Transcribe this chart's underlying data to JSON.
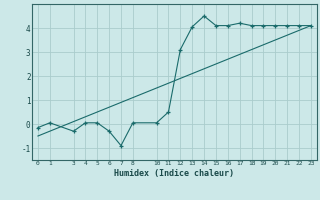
{
  "title": "",
  "xlabel": "Humidex (Indice chaleur)",
  "ylabel": "",
  "background_color": "#cce8e8",
  "grid_color": "#aacccc",
  "line_color": "#1a6b6b",
  "x_ticks": [
    0,
    1,
    3,
    4,
    5,
    6,
    7,
    8,
    10,
    11,
    12,
    13,
    14,
    15,
    16,
    17,
    18,
    19,
    20,
    21,
    22,
    23
  ],
  "line1_x": [
    0,
    1,
    3,
    4,
    5,
    6,
    7,
    8,
    10,
    11,
    12,
    13,
    14,
    15,
    16,
    17,
    18,
    19,
    20,
    21,
    22,
    23
  ],
  "line1_y": [
    -0.15,
    0.05,
    -0.3,
    0.05,
    0.05,
    -0.3,
    -0.9,
    0.05,
    0.05,
    0.5,
    3.1,
    4.05,
    4.5,
    4.1,
    4.1,
    4.2,
    4.1,
    4.1,
    4.1,
    4.1,
    4.1,
    4.1
  ],
  "line2_x": [
    0,
    23
  ],
  "line2_y": [
    -0.5,
    4.1
  ],
  "ylim": [
    -1.5,
    5.0
  ],
  "xlim": [
    -0.5,
    23.5
  ],
  "yticks": [
    -1,
    0,
    1,
    2,
    3,
    4
  ],
  "ytick_labels": [
    "-1",
    "0",
    "1",
    "2",
    "3",
    "4"
  ]
}
